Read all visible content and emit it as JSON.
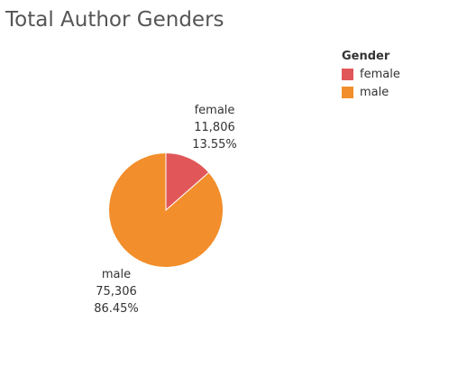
{
  "chart_data": {
    "type": "pie",
    "title": "Total Author Genders",
    "legend": {
      "title": "Gender",
      "position": "top-right"
    },
    "slices": [
      {
        "label": "female",
        "value": 11806,
        "value_label": "11,806",
        "percent_label": "13.55%",
        "percent": 13.55,
        "color": "#e15759"
      },
      {
        "label": "male",
        "value": 75306,
        "value_label": "75,306",
        "percent_label": "86.45%",
        "percent": 86.45,
        "color": "#f28e2b"
      }
    ]
  }
}
